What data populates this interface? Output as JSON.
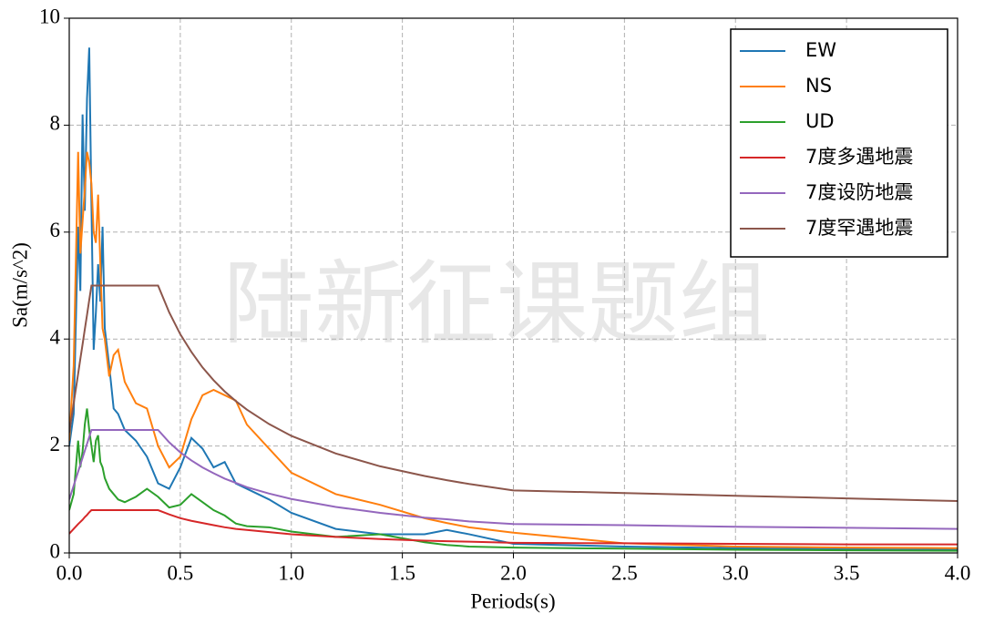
{
  "chart_data": {
    "type": "line",
    "xlabel": "Periods(s)",
    "ylabel": "Sa(m/s^2)",
    "watermark": "陆新征课题组",
    "x": [
      0,
      0.02,
      0.04,
      0.05,
      0.06,
      0.07,
      0.08,
      0.09,
      0.1,
      0.11,
      0.12,
      0.13,
      0.14,
      0.15,
      0.16,
      0.18,
      0.2,
      0.22,
      0.25,
      0.3,
      0.35,
      0.4,
      0.45,
      0.5,
      0.55,
      0.6,
      0.65,
      0.7,
      0.75,
      0.8,
      0.9,
      1.0,
      1.2,
      1.4,
      1.6,
      1.7,
      1.8,
      2.0,
      2.5,
      3.0,
      3.5,
      4.0
    ],
    "series": [
      {
        "name": "EW",
        "color": "#1f77b4",
        "values": [
          2.0,
          2.6,
          6.1,
          4.9,
          8.2,
          6.4,
          8.5,
          9.45,
          6.5,
          3.8,
          4.5,
          5.4,
          4.7,
          6.1,
          4.2,
          3.5,
          2.7,
          2.6,
          2.3,
          2.1,
          1.8,
          1.3,
          1.2,
          1.6,
          2.15,
          1.95,
          1.6,
          1.7,
          1.3,
          1.2,
          1.0,
          0.75,
          0.45,
          0.35,
          0.35,
          0.43,
          0.35,
          0.17,
          0.12,
          0.09,
          0.07,
          0.06
        ]
      },
      {
        "name": "NS",
        "color": "#ff7f0e",
        "values": [
          2.1,
          3.5,
          7.5,
          5.6,
          6.2,
          6.8,
          7.5,
          7.3,
          6.9,
          6.0,
          5.8,
          6.7,
          5.4,
          4.2,
          4.0,
          3.3,
          3.7,
          3.8,
          3.2,
          2.8,
          2.7,
          2.0,
          1.6,
          1.8,
          2.5,
          2.95,
          3.05,
          2.95,
          2.85,
          2.4,
          1.95,
          1.5,
          1.1,
          0.9,
          0.65,
          0.56,
          0.48,
          0.38,
          0.18,
          0.12,
          0.1,
          0.09
        ]
      },
      {
        "name": "UD",
        "color": "#2ca02c",
        "values": [
          0.8,
          1.1,
          2.1,
          1.6,
          1.9,
          2.4,
          2.7,
          2.3,
          2.0,
          1.7,
          2.1,
          2.2,
          1.7,
          1.6,
          1.4,
          1.2,
          1.1,
          1.0,
          0.95,
          1.05,
          1.2,
          1.05,
          0.85,
          0.9,
          1.1,
          0.95,
          0.8,
          0.7,
          0.55,
          0.5,
          0.48,
          0.4,
          0.3,
          0.35,
          0.2,
          0.15,
          0.12,
          0.1,
          0.08,
          0.06,
          0.05,
          0.04
        ]
      },
      {
        "name": "7度多遇地震",
        "color": "#d62728",
        "values": [
          0.36,
          0.45,
          0.54,
          0.58,
          0.62,
          0.67,
          0.71,
          0.76,
          0.8,
          0.8,
          0.8,
          0.8,
          0.8,
          0.8,
          0.8,
          0.8,
          0.8,
          0.8,
          0.8,
          0.8,
          0.8,
          0.8,
          0.72,
          0.65,
          0.6,
          0.56,
          0.52,
          0.48,
          0.45,
          0.43,
          0.39,
          0.35,
          0.3,
          0.26,
          0.23,
          0.22,
          0.21,
          0.19,
          0.18,
          0.17,
          0.16,
          0.16
        ]
      },
      {
        "name": "7度设防地震",
        "color": "#9467bd",
        "values": [
          1.0,
          1.26,
          1.52,
          1.65,
          1.78,
          1.91,
          2.04,
          2.17,
          2.3,
          2.3,
          2.3,
          2.3,
          2.3,
          2.3,
          2.3,
          2.3,
          2.3,
          2.3,
          2.3,
          2.3,
          2.3,
          2.3,
          2.07,
          1.88,
          1.73,
          1.6,
          1.49,
          1.39,
          1.31,
          1.23,
          1.11,
          1.01,
          0.86,
          0.75,
          0.66,
          0.63,
          0.59,
          0.54,
          0.52,
          0.49,
          0.47,
          0.45
        ]
      },
      {
        "name": "7度罕遇地震",
        "color": "#8c564b",
        "values": [
          2.25,
          2.8,
          3.35,
          3.63,
          3.9,
          4.18,
          4.45,
          4.73,
          5.0,
          5.0,
          5.0,
          5.0,
          5.0,
          5.0,
          5.0,
          5.0,
          5.0,
          5.0,
          5.0,
          5.0,
          5.0,
          5.0,
          4.5,
          4.09,
          3.76,
          3.47,
          3.23,
          3.02,
          2.84,
          2.68,
          2.41,
          2.19,
          1.86,
          1.62,
          1.44,
          1.36,
          1.29,
          1.17,
          1.12,
          1.07,
          1.02,
          0.97
        ]
      }
    ],
    "xlim": [
      0,
      4
    ],
    "ylim": [
      0,
      10
    ],
    "xticks": [
      {
        "value": 0,
        "label": "0.0"
      },
      0.5,
      {
        "value": 1,
        "label": "1.0"
      },
      1.5,
      {
        "value": 2,
        "label": "2.0"
      },
      2.5,
      {
        "value": 3,
        "label": "3.0"
      },
      3.5,
      {
        "value": 4,
        "label": "4.0"
      }
    ],
    "yticks": [
      0,
      2,
      4,
      6,
      8,
      10
    ],
    "grid": true,
    "legend": "upper right"
  }
}
